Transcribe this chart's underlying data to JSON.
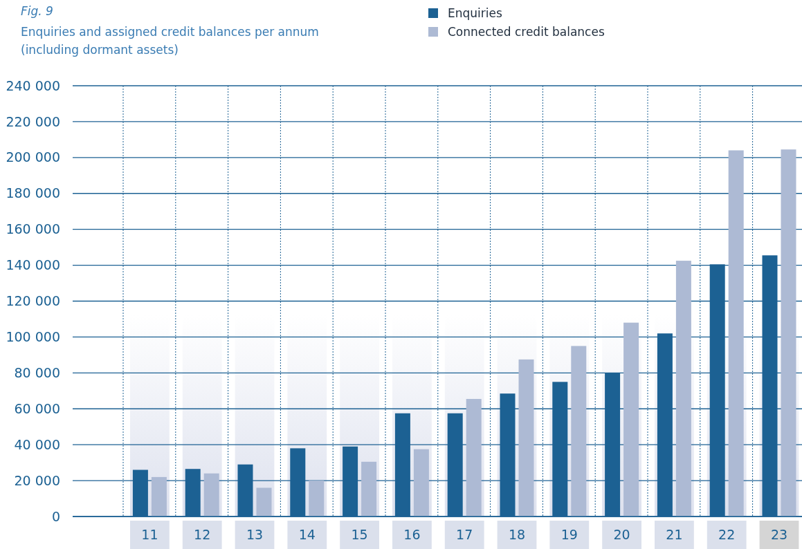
{
  "chart_data": {
    "type": "bar",
    "title": "Fig. 9",
    "subtitle": "Enquiries and assigned credit balances per annum\n(including dormant assets)",
    "categories": [
      "11",
      "12",
      "13",
      "14",
      "15",
      "16",
      "17",
      "18",
      "19",
      "20",
      "21",
      "22",
      "23"
    ],
    "series": [
      {
        "name": "Enquiries",
        "color": "#1c6193",
        "values": [
          26000,
          26500,
          29000,
          38000,
          39000,
          57500,
          57500,
          68500,
          75000,
          80000,
          102000,
          140500,
          145500
        ]
      },
      {
        "name": "Connected credit balances",
        "color": "#adbad4",
        "values": [
          22000,
          24000,
          16000,
          20000,
          30500,
          37500,
          65500,
          87500,
          95000,
          108000,
          142500,
          204000,
          204500
        ]
      }
    ],
    "ylim": [
      0,
      240000
    ],
    "yticks": [
      0,
      {
        "value": 20000,
        "label": "20 000"
      },
      {
        "value": 40000,
        "label": "40 000"
      },
      {
        "value": 60000,
        "label": "60 000"
      },
      {
        "value": 80000,
        "label": "80 000"
      },
      {
        "value": 100000,
        "label": "100 000"
      },
      {
        "value": 120000,
        "label": "120 000"
      },
      {
        "value": 140000,
        "label": "140 000"
      },
      {
        "value": 160000,
        "label": "160 000"
      },
      {
        "value": 180000,
        "label": "180 000"
      },
      {
        "value": 200000,
        "label": "200 000"
      },
      {
        "value": 220000,
        "label": "220 000"
      },
      {
        "value": 240000,
        "label": "240 000"
      }
    ],
    "grid": true,
    "legend": "top right"
  }
}
